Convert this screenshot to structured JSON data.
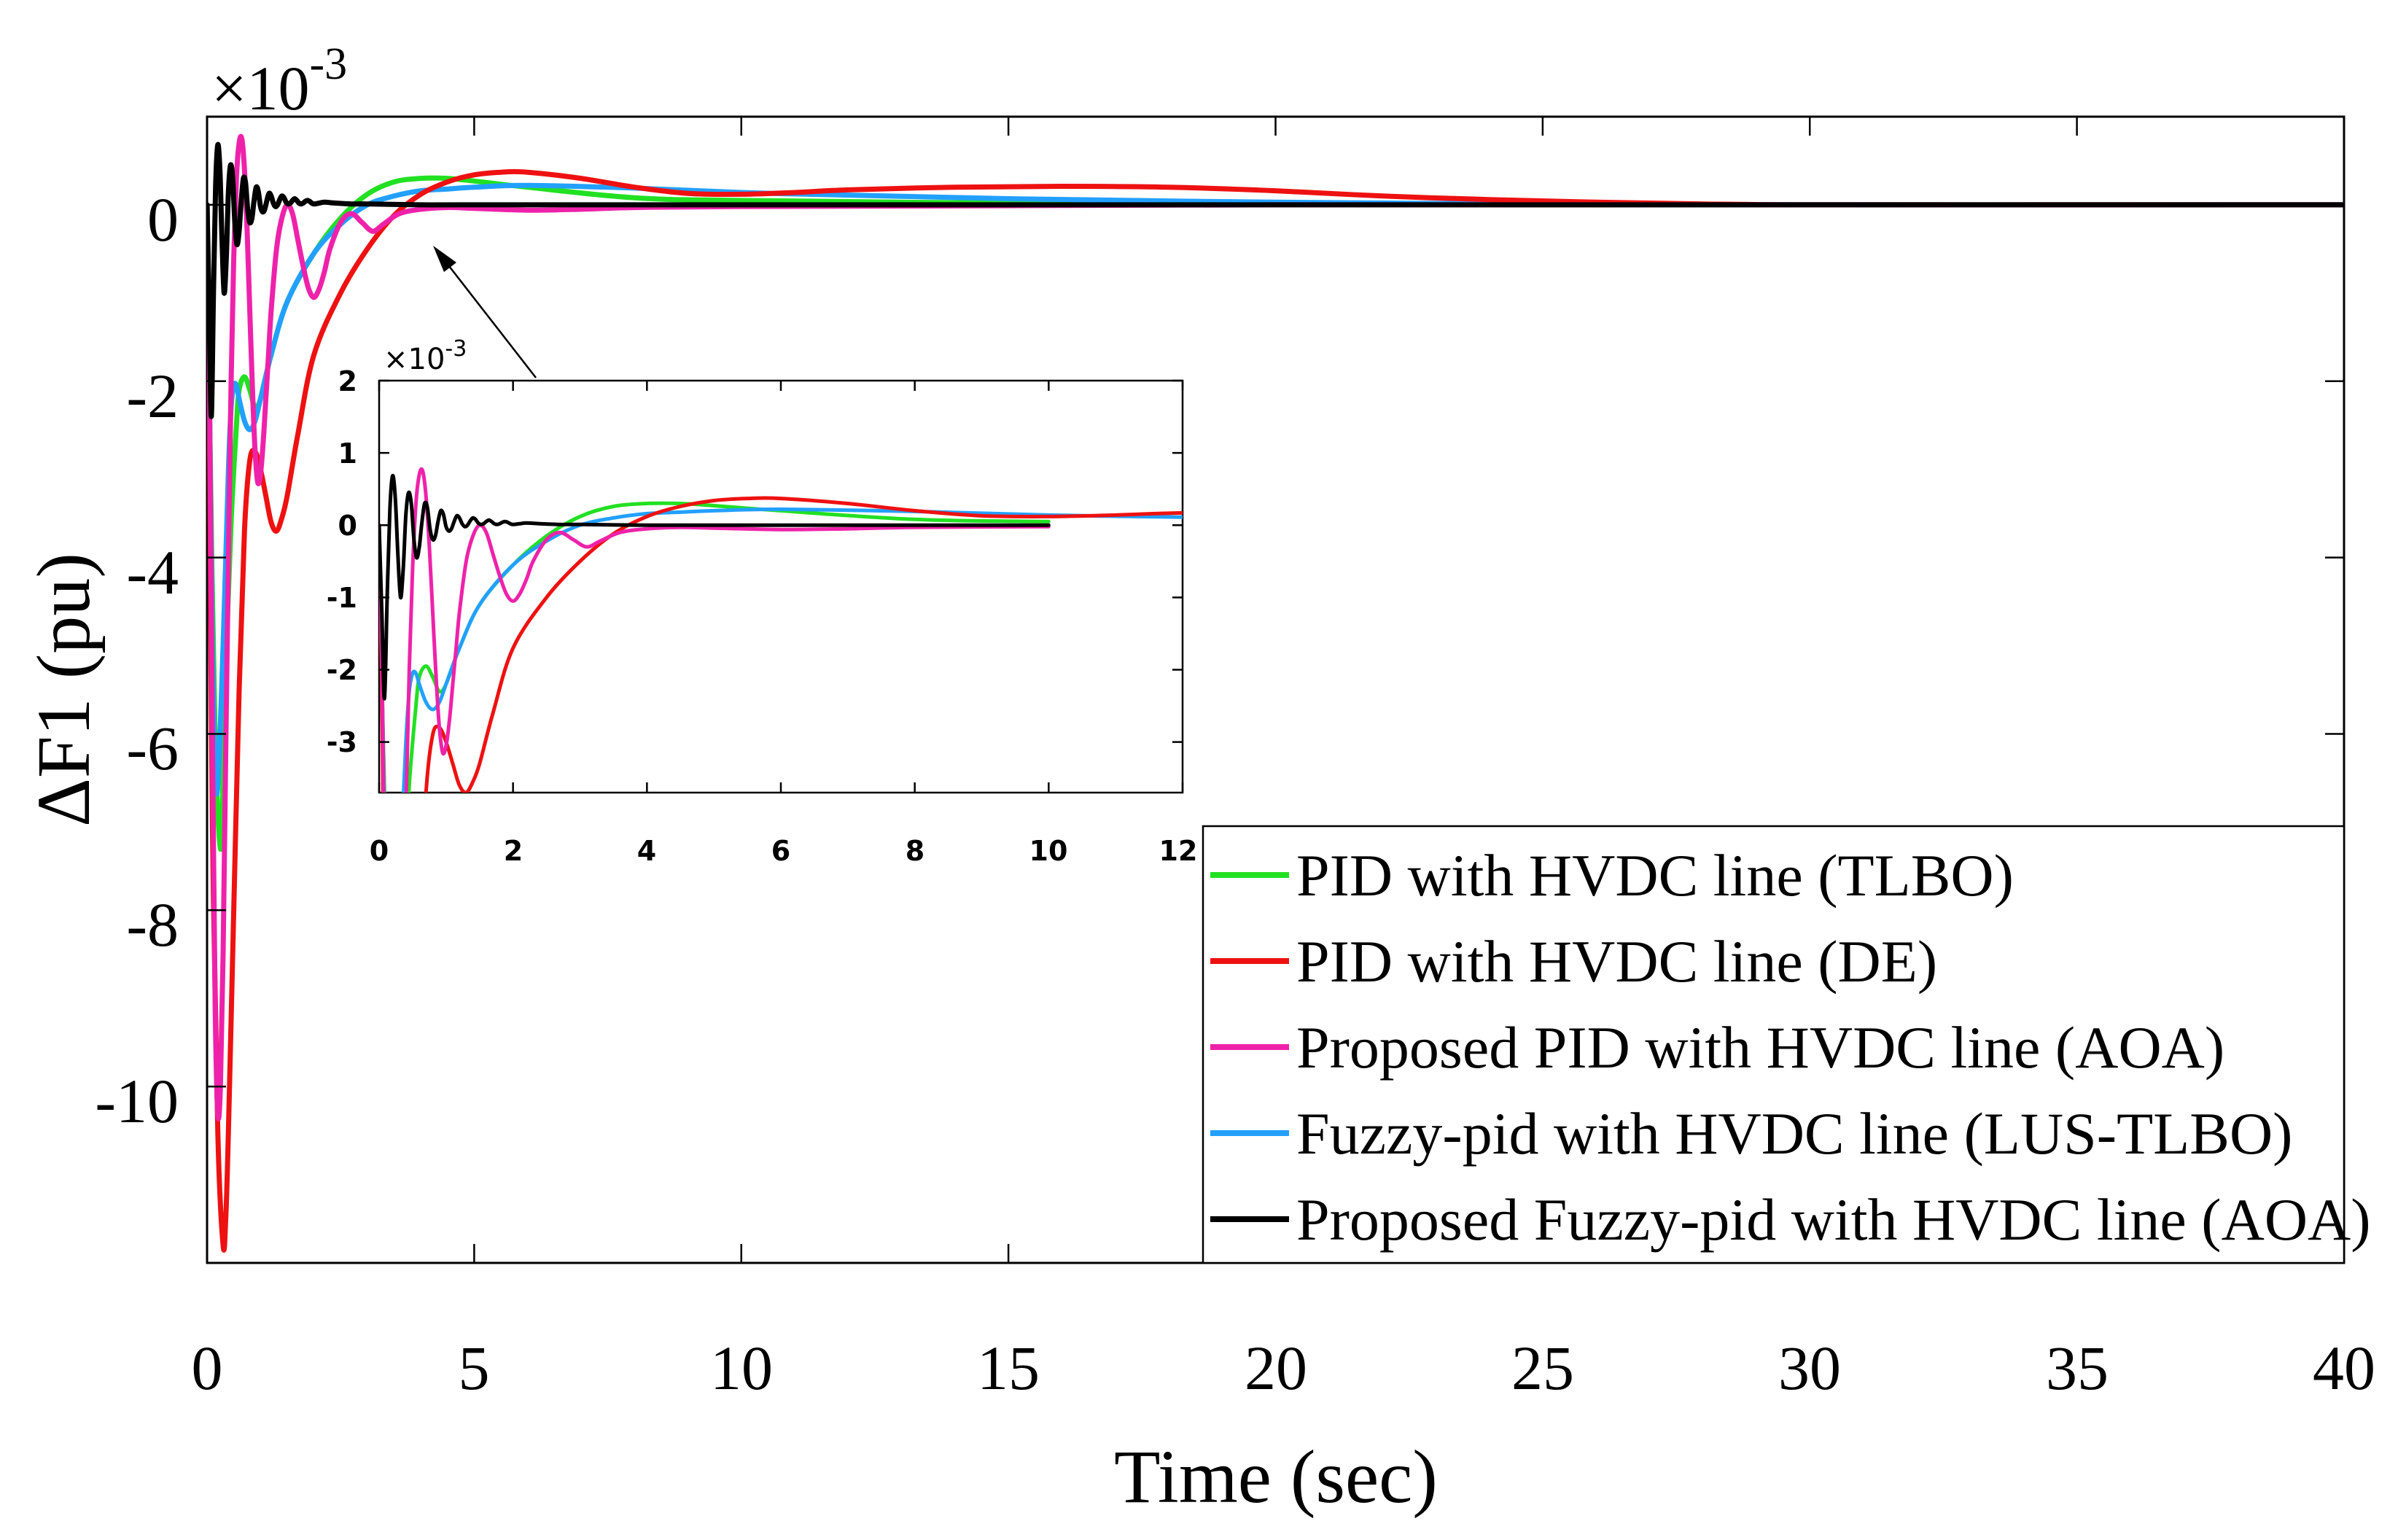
{
  "chart_data": {
    "type": "line",
    "main": {
      "xlabel": "Time (sec)",
      "ylabel": "ΔF1 (pu)",
      "exponent_label": "×10",
      "exponent_power": "-3",
      "xlim": [
        0,
        40
      ],
      "ylim": [
        -12,
        1
      ],
      "x_ticks": [
        "0",
        "5",
        "10",
        "15",
        "20",
        "25",
        "30",
        "35",
        "40"
      ],
      "y_ticks": [
        "0",
        "-2",
        "-4",
        "-6",
        "-8",
        "-10"
      ],
      "y_tick_values": [
        0,
        -2,
        -4,
        -6,
        -8,
        -10
      ],
      "x_tick_values": [
        0,
        5,
        10,
        15,
        20,
        25,
        30,
        35,
        40
      ]
    },
    "inset": {
      "exponent_label": "×10",
      "exponent_power": "-3",
      "xlim": [
        0,
        12
      ],
      "ylim": [
        -3.7,
        2
      ],
      "x_ticks": [
        "0",
        "2",
        "4",
        "6",
        "8",
        "10",
        "12"
      ],
      "x_tick_values": [
        0,
        2,
        4,
        6,
        8,
        10,
        12
      ],
      "y_ticks": [
        "2",
        "1",
        "0",
        "-1",
        "-2",
        "-3"
      ],
      "y_tick_values": [
        2,
        1,
        0,
        -1,
        -2,
        -3
      ]
    },
    "series": [
      {
        "name": "PID with HVDC line (TLBO)",
        "color": "#22e022",
        "x": [
          0,
          0.05,
          0.15,
          0.25,
          0.3,
          0.35,
          0.45,
          0.55,
          0.6,
          0.7,
          0.8,
          0.9,
          1.0,
          1.2,
          1.5,
          2.0,
          2.5,
          3.0,
          3.5,
          4.0,
          4.5,
          5,
          6,
          8,
          10,
          15,
          20,
          25,
          30,
          40
        ],
        "y": [
          0,
          -2.5,
          -6,
          -7.3,
          -6.5,
          -5.3,
          -3.6,
          -2.5,
          -2.1,
          -1.95,
          -2.1,
          -2.3,
          -2.2,
          -1.7,
          -1.1,
          -0.55,
          -0.15,
          0.12,
          0.26,
          0.3,
          0.3,
          0.27,
          0.2,
          0.08,
          0.05,
          0.02,
          0.01,
          0,
          0,
          0
        ]
      },
      {
        "name": "PID with HVDC line (DE)",
        "color": "#ee1111",
        "x": [
          0,
          0.05,
          0.1,
          0.2,
          0.3,
          0.35,
          0.4,
          0.5,
          0.6,
          0.7,
          0.8,
          0.9,
          1.0,
          1.1,
          1.2,
          1.3,
          1.4,
          1.5,
          1.7,
          2.0,
          2.5,
          3.0,
          3.5,
          4.0,
          4.5,
          5.0,
          5.5,
          6.0,
          7.0,
          8.0,
          9.0,
          10.0,
          11.0,
          12.0,
          14.0,
          16.0,
          18.0,
          20.0,
          22.0,
          24.0,
          26.0,
          28.0,
          30.0,
          35.0,
          40.0
        ],
        "y": [
          0,
          -3,
          -7,
          -10.5,
          -11.8,
          -11.5,
          -10.5,
          -8,
          -5.5,
          -3.7,
          -2.9,
          -2.8,
          -3.0,
          -3.3,
          -3.6,
          -3.7,
          -3.55,
          -3.3,
          -2.6,
          -1.7,
          -1.0,
          -0.5,
          -0.12,
          0.12,
          0.26,
          0.34,
          0.37,
          0.37,
          0.3,
          0.2,
          0.13,
          0.12,
          0.14,
          0.17,
          0.2,
          0.21,
          0.2,
          0.16,
          0.1,
          0.06,
          0.03,
          0.01,
          0,
          0,
          0
        ]
      },
      {
        "name": "Proposed PID with HVDC line (AOA)",
        "color": "#ee22aa",
        "x": [
          0,
          0.05,
          0.1,
          0.15,
          0.2,
          0.25,
          0.3,
          0.35,
          0.4,
          0.45,
          0.5,
          0.55,
          0.6,
          0.65,
          0.7,
          0.75,
          0.8,
          0.85,
          0.9,
          0.95,
          1.0,
          1.05,
          1.1,
          1.15,
          1.2,
          1.3,
          1.4,
          1.5,
          1.6,
          1.7,
          1.8,
          1.9,
          2.0,
          2.1,
          2.2,
          2.3,
          2.5,
          2.7,
          2.9,
          3.1,
          3.3,
          3.6,
          4.0,
          4.5,
          5,
          6,
          7,
          8,
          10,
          15,
          20,
          30,
          40
        ],
        "y": [
          0,
          -2.5,
          -6,
          -9,
          -10.3,
          -10,
          -8.5,
          -6.2,
          -4,
          -2,
          -0.6,
          0.3,
          0.7,
          0.75,
          0.4,
          -0.3,
          -1.2,
          -2.1,
          -2.8,
          -3.15,
          -3.05,
          -2.7,
          -2.2,
          -1.7,
          -1.2,
          -0.5,
          -0.15,
          0.0,
          -0.1,
          -0.4,
          -0.7,
          -0.95,
          -1.05,
          -0.95,
          -0.75,
          -0.5,
          -0.2,
          -0.1,
          -0.2,
          -0.3,
          -0.22,
          -0.1,
          -0.05,
          -0.03,
          -0.04,
          -0.06,
          -0.05,
          -0.03,
          -0.02,
          -0.01,
          0,
          0,
          0
        ]
      },
      {
        "name": "Fuzzy-pid with HVDC line (LUS-TLBO)",
        "color": "#22a0ff",
        "x": [
          0,
          0.05,
          0.1,
          0.15,
          0.2,
          0.3,
          0.4,
          0.45,
          0.5,
          0.55,
          0.6,
          0.7,
          0.8,
          0.9,
          1.0,
          1.2,
          1.5,
          2.0,
          2.5,
          3.0,
          3.5,
          4.0,
          4.5,
          5.0,
          6.0,
          8.0,
          10.0,
          12.0,
          15,
          20,
          25,
          30,
          40
        ],
        "y": [
          0,
          -2.5,
          -5,
          -6.3,
          -6.6,
          -5,
          -3,
          -2.3,
          -2.05,
          -2.05,
          -2.2,
          -2.45,
          -2.55,
          -2.45,
          -2.2,
          -1.7,
          -1.1,
          -0.55,
          -0.22,
          0.0,
          0.1,
          0.16,
          0.18,
          0.2,
          0.22,
          0.19,
          0.14,
          0.11,
          0.07,
          0.03,
          0.01,
          0,
          0
        ]
      },
      {
        "name": "Proposed Fuzzy-pid with HVDC line (AOA)",
        "color": "#000000",
        "x": [
          0,
          0.04,
          0.08,
          0.12,
          0.16,
          0.2,
          0.24,
          0.28,
          0.32,
          0.36,
          0.4,
          0.44,
          0.48,
          0.52,
          0.56,
          0.6,
          0.64,
          0.68,
          0.72,
          0.76,
          0.8,
          0.84,
          0.88,
          0.92,
          0.96,
          1.0,
          1.04,
          1.08,
          1.12,
          1.16,
          1.2,
          1.24,
          1.28,
          1.32,
          1.36,
          1.4,
          1.44,
          1.48,
          1.52,
          1.56,
          1.6,
          1.64,
          1.68,
          1.72,
          1.76,
          1.8,
          1.84,
          1.88,
          1.92,
          1.96,
          2.0,
          2.1,
          2.2,
          2.4,
          2.7,
          3.0,
          4.0,
          5,
          10,
          20,
          30,
          40
        ],
        "y": [
          0,
          -1.2,
          -2.4,
          -1.0,
          0.2,
          0.68,
          0.4,
          -0.4,
          -1.0,
          -0.6,
          0.15,
          0.45,
          0.3,
          -0.2,
          -0.45,
          -0.3,
          0.05,
          0.3,
          0.25,
          -0.05,
          -0.2,
          -0.15,
          0.05,
          0.2,
          0.15,
          -0.02,
          -0.08,
          -0.05,
          0.05,
          0.13,
          0.1,
          0.02,
          -0.02,
          0.0,
          0.06,
          0.1,
          0.08,
          0.03,
          0.01,
          0.02,
          0.05,
          0.07,
          0.05,
          0.02,
          0.01,
          0.02,
          0.04,
          0.05,
          0.04,
          0.02,
          0.01,
          0.02,
          0.03,
          0.02,
          0.01,
          0.01,
          0.0,
          0.0,
          0,
          0,
          0,
          0
        ]
      }
    ]
  }
}
